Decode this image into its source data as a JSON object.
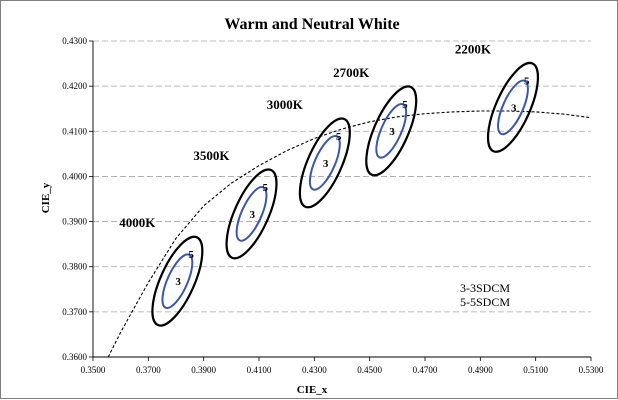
{
  "chart_data": {
    "type": "scatter",
    "title": "Warm and Neutral White",
    "xlabel": "CIE_x",
    "ylabel": "CIE_y",
    "xlim": [
      0.35,
      0.53
    ],
    "ylim": [
      0.36,
      0.43
    ],
    "xticks": [
      "0.3500",
      "0.3700",
      "0.3900",
      "0.4100",
      "0.4300",
      "0.4500",
      "0.4700",
      "0.4900",
      "0.5100",
      "0.5300"
    ],
    "yticks": [
      "0.3600",
      "0.3700",
      "0.3800",
      "0.3900",
      "0.4000",
      "0.4100",
      "0.4200",
      "0.4300"
    ],
    "grid": "horizontal dashed",
    "ellipses": [
      {
        "cct": "4000K",
        "center": [
          0.3805,
          0.3768
        ],
        "outer_label": "5",
        "inner_label": "3"
      },
      {
        "cct": "3500K",
        "center": [
          0.4073,
          0.3917
        ],
        "outer_label": "5",
        "inner_label": "3"
      },
      {
        "cct": "3000K",
        "center": [
          0.4338,
          0.403
        ],
        "outer_label": "5",
        "inner_label": "3"
      },
      {
        "cct": "2700K",
        "center": [
          0.4578,
          0.4101
        ],
        "outer_label": "5",
        "inner_label": "3"
      },
      {
        "cct": "2200K",
        "center": [
          0.5018,
          0.4153
        ],
        "outer_label": "5",
        "inner_label": "3"
      }
    ],
    "curve": {
      "style": "dashed",
      "points": [
        [
          0.3555,
          0.36
        ],
        [
          0.36,
          0.3655
        ],
        [
          0.37,
          0.3765
        ],
        [
          0.38,
          0.3863
        ],
        [
          0.39,
          0.3935
        ],
        [
          0.4,
          0.3985
        ],
        [
          0.41,
          0.4024
        ],
        [
          0.42,
          0.4057
        ],
        [
          0.43,
          0.4084
        ],
        [
          0.44,
          0.4105
        ],
        [
          0.45,
          0.4121
        ],
        [
          0.46,
          0.4132
        ],
        [
          0.47,
          0.4139
        ],
        [
          0.48,
          0.4143
        ],
        [
          0.49,
          0.4145
        ],
        [
          0.5,
          0.4145
        ],
        [
          0.51,
          0.4143
        ],
        [
          0.52,
          0.4138
        ],
        [
          0.53,
          0.413
        ]
      ]
    },
    "legend_text": [
      "3-3SDCM",
      "5-5SDCM"
    ],
    "colors": {
      "outer": "#000000",
      "inner": "#3b57a8",
      "grid": "#a6a6a6",
      "curve": "#000000"
    }
  }
}
